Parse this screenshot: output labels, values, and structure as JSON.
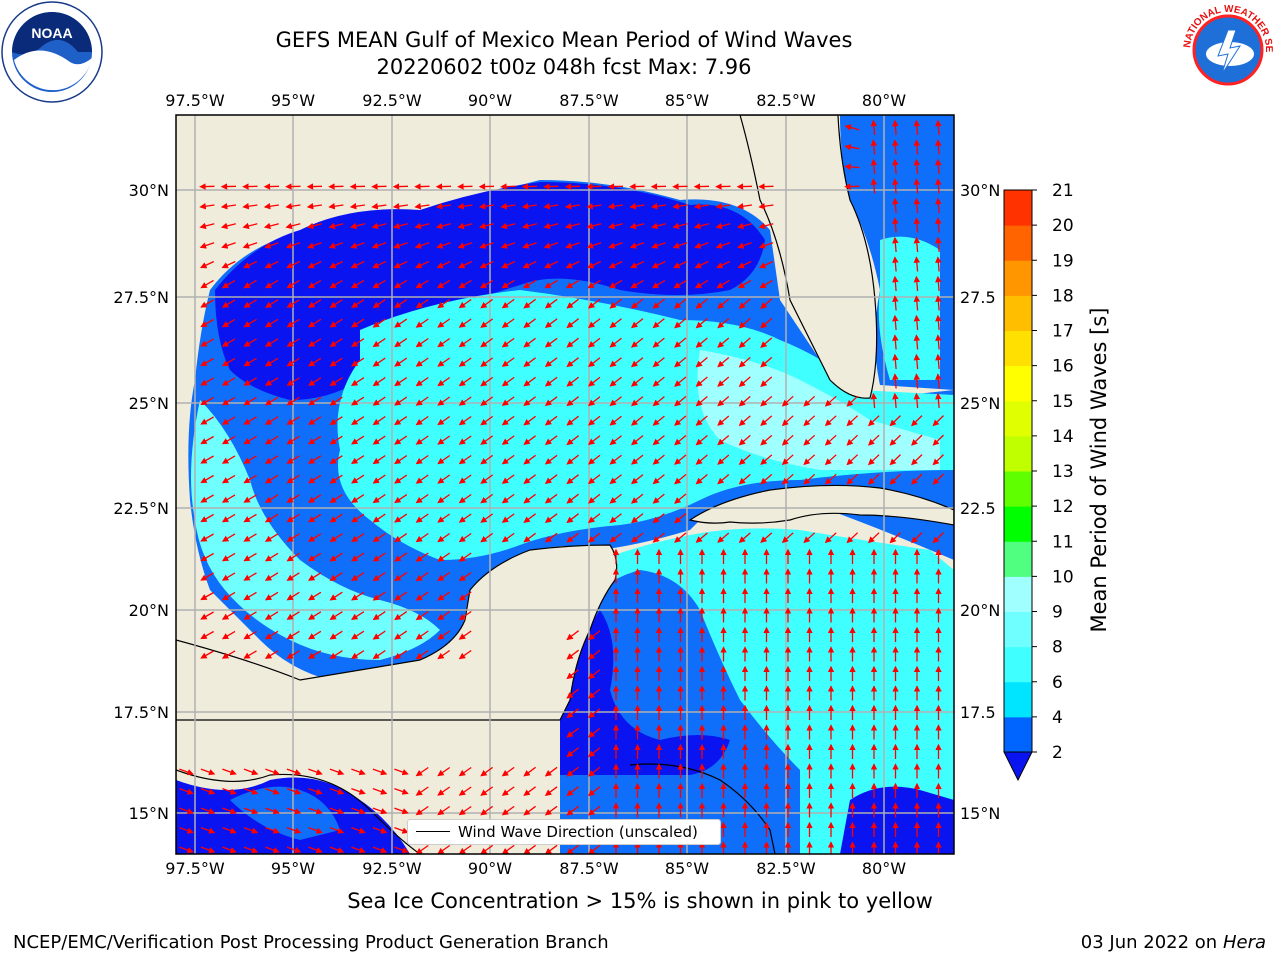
{
  "title": {
    "line1": "GEFS MEAN Gulf of Mexico Mean Period of Wind Waves",
    "line2": "20220602 t00z 048h fcst   Max: 7.96"
  },
  "logos": {
    "left": {
      "name": "noaa-logo",
      "text": "NOAA"
    },
    "right": {
      "name": "nws-logo",
      "text": "NATIONAL WEATHER SERVICE"
    }
  },
  "map": {
    "lon_ticks": [
      "97.5°W",
      "95°W",
      "92.5°W",
      "90°W",
      "87.5°W",
      "85°W",
      "82.5°W",
      "80°W"
    ],
    "lat_ticks_left": [
      "30°N",
      "27.5°N",
      "25°N",
      "22.5°N",
      "20°N",
      "17.5°N",
      "15°N"
    ],
    "lat_ticks_right": [
      "30°N",
      "27.5",
      "25°N",
      "22.5",
      "20°N",
      "17.5",
      "15°N"
    ],
    "land_color": "#efecdc",
    "water_colors": [
      "#0a14f0",
      "#0f6efa",
      "#00e6f8",
      "#55ffff"
    ],
    "arrow_color": "#ff0000",
    "grid": true
  },
  "legend": {
    "label": "Wind Wave Direction (unscaled)"
  },
  "colorbar": {
    "label": "Mean Period of Wind Waves [s]",
    "ticks": [
      "2",
      "4",
      "6",
      "8",
      "9",
      "10",
      "11",
      "12",
      "13",
      "14",
      "15",
      "16",
      "17",
      "18",
      "19",
      "20",
      "21"
    ],
    "colors": [
      "#0064ff",
      "#00e5ff",
      "#40ffff",
      "#70ffff",
      "#a0ffff",
      "#50ff80",
      "#00ff00",
      "#60ff00",
      "#c0ff00",
      "#e0ff00",
      "#ffff00",
      "#ffe000",
      "#ffbe00",
      "#ff9600",
      "#ff6400",
      "#ff3200",
      "#ff0000"
    ],
    "under_color": "#0a14f0"
  },
  "note": "Sea Ice Concentration > 15% is shown in pink to yellow",
  "footer": {
    "left": "NCEP/EMC/Verification Post Processing Product Generation Branch",
    "right_date": "03 Jun 2022 on",
    "right_host": "Hera"
  }
}
